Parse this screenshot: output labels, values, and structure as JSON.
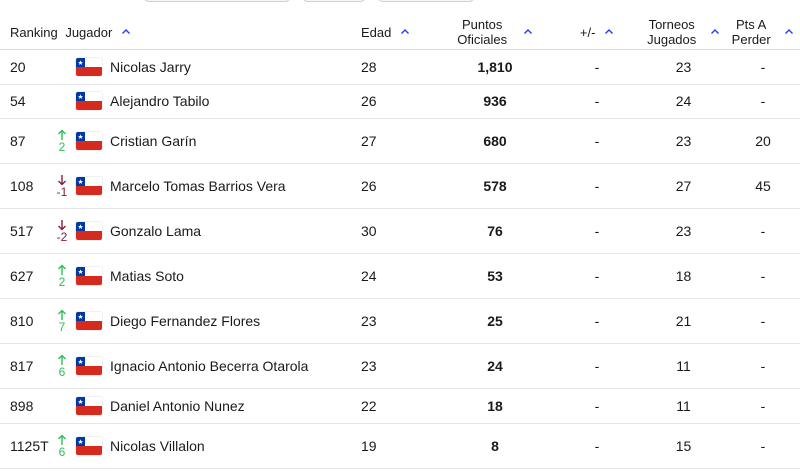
{
  "headers": {
    "ranking": "Ranking",
    "jugador": "Jugador",
    "edad": "Edad",
    "puntos_line1": "Puntos",
    "puntos_line2": "Oficiales",
    "diff": "+/-",
    "torneos_line1": "Torneos",
    "torneos_line2": "Jugados",
    "pts_line1": "Pts A",
    "pts_line2": "Perder"
  },
  "colors": {
    "accent": "#1f3cff",
    "move_up": "#2ebf57",
    "move_down": "#8a1c3c",
    "flag_red": "#d52b1e",
    "flag_blue": "#0039a6"
  },
  "rows": [
    {
      "rank": "20",
      "move": "",
      "move_dir": "",
      "flag": "chile-flag",
      "name": "Nicolas Jarry",
      "age": "28",
      "points": "1,810",
      "diff": "-",
      "tournaments": "23",
      "pts_to_lose": "-"
    },
    {
      "rank": "54",
      "move": "",
      "move_dir": "",
      "flag": "chile-flag",
      "name": "Alejandro Tabilo",
      "age": "26",
      "points": "936",
      "diff": "-",
      "tournaments": "24",
      "pts_to_lose": "-"
    },
    {
      "rank": "87",
      "move": "2",
      "move_dir": "up",
      "flag": "chile-flag",
      "name": "Cristian Garín",
      "age": "27",
      "points": "680",
      "diff": "-",
      "tournaments": "23",
      "pts_to_lose": "20"
    },
    {
      "rank": "108",
      "move": "-1",
      "move_dir": "down",
      "flag": "chile-flag",
      "name": "Marcelo Tomas Barrios Vera",
      "age": "26",
      "points": "578",
      "diff": "-",
      "tournaments": "27",
      "pts_to_lose": "45"
    },
    {
      "rank": "517",
      "move": "-2",
      "move_dir": "down",
      "flag": "chile-flag",
      "name": "Gonzalo Lama",
      "age": "30",
      "points": "76",
      "diff": "-",
      "tournaments": "23",
      "pts_to_lose": "-"
    },
    {
      "rank": "627",
      "move": "2",
      "move_dir": "up",
      "flag": "chile-flag",
      "name": "Matias Soto",
      "age": "24",
      "points": "53",
      "diff": "-",
      "tournaments": "18",
      "pts_to_lose": "-"
    },
    {
      "rank": "810",
      "move": "7",
      "move_dir": "up",
      "flag": "chile-flag",
      "name": "Diego Fernandez Flores",
      "age": "23",
      "points": "25",
      "diff": "-",
      "tournaments": "21",
      "pts_to_lose": "-"
    },
    {
      "rank": "817",
      "move": "6",
      "move_dir": "up",
      "flag": "chile-flag",
      "name": "Ignacio Antonio Becerra Otarola",
      "age": "23",
      "points": "24",
      "diff": "-",
      "tournaments": "11",
      "pts_to_lose": "-"
    },
    {
      "rank": "898",
      "move": "",
      "move_dir": "",
      "flag": "chile-flag",
      "name": "Daniel Antonio Nunez",
      "age": "22",
      "points": "18",
      "diff": "-",
      "tournaments": "11",
      "pts_to_lose": "-"
    },
    {
      "rank": "1125T",
      "move": "6",
      "move_dir": "up",
      "flag": "chile-flag",
      "name": "Nicolas Villalon",
      "age": "19",
      "points": "8",
      "diff": "-",
      "tournaments": "15",
      "pts_to_lose": "-"
    }
  ]
}
